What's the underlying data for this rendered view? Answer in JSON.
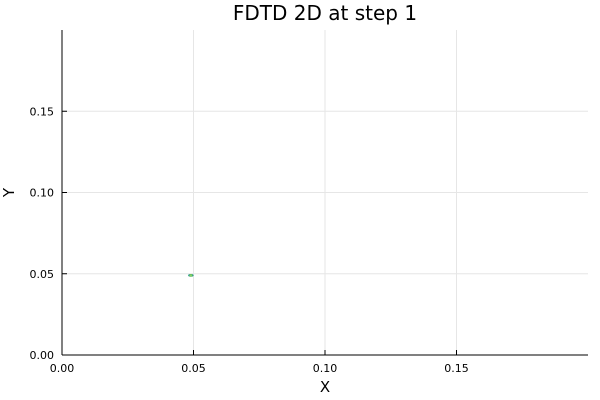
{
  "chart_data": {
    "type": "contour",
    "title": "FDTD 2D at step 1",
    "xlabel": "X",
    "ylabel": "Y",
    "xlim": [
      0.0,
      0.2
    ],
    "ylim": [
      0.0,
      0.2
    ],
    "xticks": [
      {
        "value": 0.0,
        "label": "0.00"
      },
      {
        "value": 0.05,
        "label": "0.05"
      },
      {
        "value": 0.1,
        "label": "0.10"
      },
      {
        "value": 0.15,
        "label": "0.15"
      }
    ],
    "yticks": [
      {
        "value": 0.0,
        "label": "0.00"
      },
      {
        "value": 0.05,
        "label": "0.05"
      },
      {
        "value": 0.1,
        "label": "0.10"
      },
      {
        "value": 0.15,
        "label": "0.15"
      }
    ],
    "grid": true,
    "legend": "none",
    "contours": [
      {
        "center": [
          0.049,
          0.049
        ],
        "rx": 0.0008,
        "ry": 0.0004,
        "color": "#178d8a"
      },
      {
        "center": [
          0.049,
          0.049
        ],
        "rx": 0.0004,
        "ry": 0.0002,
        "color": "#7fd04f"
      }
    ]
  },
  "colors": {
    "axis": "#000000",
    "grid": "#e6e6e6",
    "contour_outer": "#178d8a",
    "contour_inner": "#7fd04f"
  }
}
